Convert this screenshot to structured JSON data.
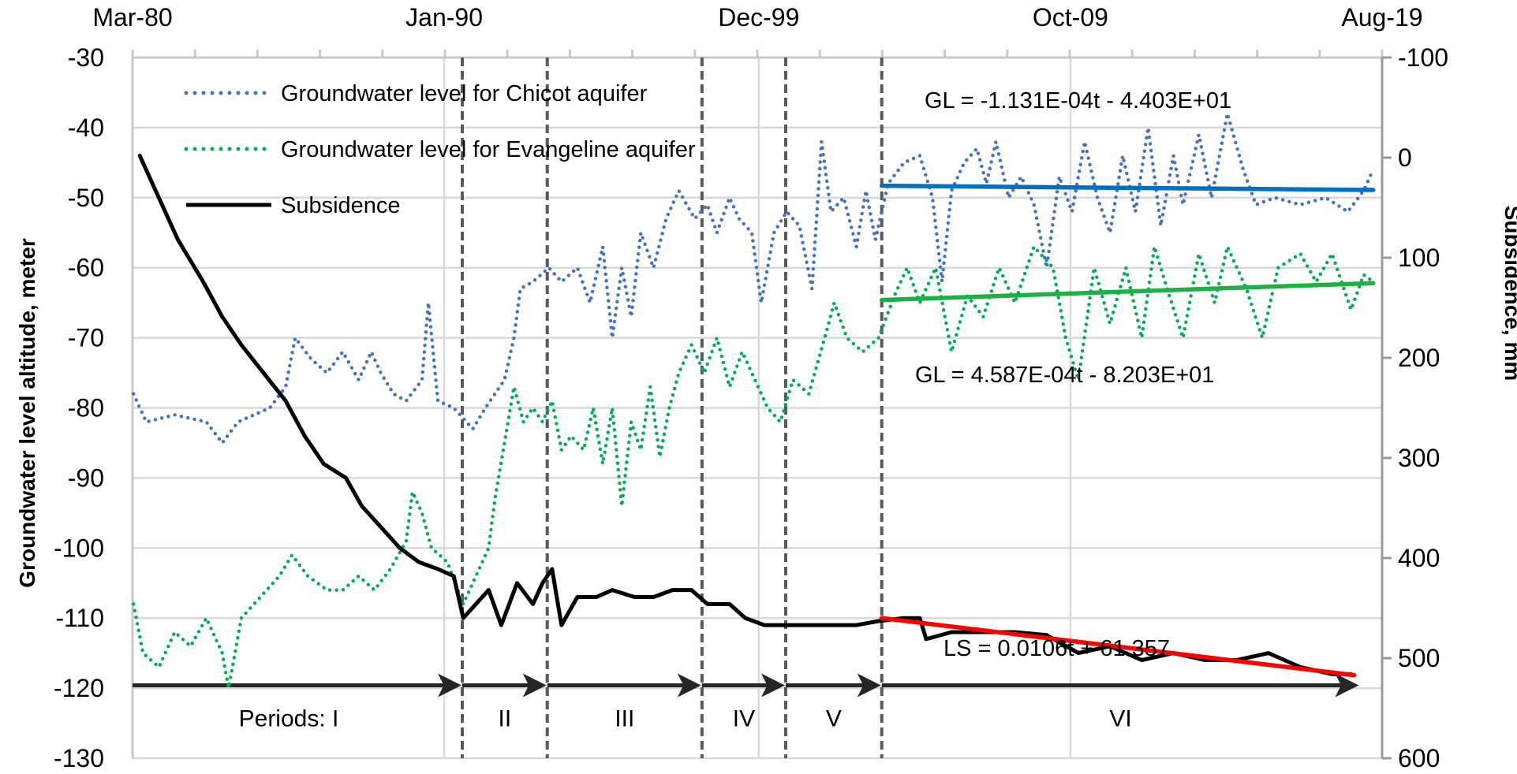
{
  "chart_data": {
    "type": "line",
    "title": "",
    "xlabel": "",
    "ylabel": "Groundwater level altitude, meter",
    "y2label": "Subsidence, mm",
    "xlim": [
      1980.17,
      2019.58
    ],
    "ylim": [
      -130,
      -30
    ],
    "y2lim": [
      600,
      -100
    ],
    "grid": true,
    "legend_position": "top-left",
    "x_tick_labels": [
      {
        "t": 1980.17,
        "label": "Mar-80"
      },
      {
        "t": 1990.0,
        "label": "Jan-90"
      },
      {
        "t": 1999.92,
        "label": "Dec-99"
      },
      {
        "t": 2009.75,
        "label": "Oct-09"
      },
      {
        "t": 2019.58,
        "label": "Aug-19"
      }
    ],
    "y_ticks": [
      -30,
      -40,
      -50,
      -60,
      -70,
      -80,
      -90,
      -100,
      -110,
      -120,
      -130
    ],
    "y_tick_labels": [
      "-30",
      "-40",
      "-50",
      "-60",
      "-70",
      "-80",
      "-90",
      "-100",
      "-110",
      "-120",
      "-130"
    ],
    "y2_ticks": [
      -100,
      0,
      100,
      200,
      300,
      400,
      500,
      600
    ],
    "y2_tick_labels": [
      "-100",
      "0",
      "100",
      "200",
      "300",
      "400",
      "500",
      "600"
    ],
    "series": [
      {
        "name": "Groundwater level for Chicot aquifer",
        "axis": "left",
        "style": "dotted",
        "color": "#4472C4",
        "points": [
          [
            1980.2,
            -78
          ],
          [
            1980.6,
            -82
          ],
          [
            1981.5,
            -81
          ],
          [
            1982.5,
            -82
          ],
          [
            1983.0,
            -85
          ],
          [
            1983.5,
            -82
          ],
          [
            1984.5,
            -80
          ],
          [
            1985.0,
            -77
          ],
          [
            1985.3,
            -70
          ],
          [
            1985.8,
            -73
          ],
          [
            1986.3,
            -75
          ],
          [
            1986.8,
            -72
          ],
          [
            1987.3,
            -76
          ],
          [
            1987.7,
            -72
          ],
          [
            1988.0,
            -75
          ],
          [
            1988.4,
            -78
          ],
          [
            1988.8,
            -79
          ],
          [
            1989.3,
            -76
          ],
          [
            1989.5,
            -65
          ],
          [
            1989.8,
            -79
          ],
          [
            1990.3,
            -80
          ],
          [
            1990.9,
            -83
          ],
          [
            1991.3,
            -80
          ],
          [
            1991.9,
            -76
          ],
          [
            1992.2,
            -70
          ],
          [
            1992.4,
            -63
          ],
          [
            1992.8,
            -62
          ],
          [
            1993.3,
            -60
          ],
          [
            1993.7,
            -62
          ],
          [
            1994.2,
            -60
          ],
          [
            1994.6,
            -65
          ],
          [
            1995.0,
            -57
          ],
          [
            1995.3,
            -70
          ],
          [
            1995.6,
            -60
          ],
          [
            1995.9,
            -67
          ],
          [
            1996.2,
            -55
          ],
          [
            1996.6,
            -60
          ],
          [
            1997.0,
            -53
          ],
          [
            1997.4,
            -49
          ],
          [
            1997.9,
            -53
          ],
          [
            1998.3,
            -51
          ],
          [
            1998.6,
            -55
          ],
          [
            1999.0,
            -50
          ],
          [
            1999.3,
            -53
          ],
          [
            1999.7,
            -55
          ],
          [
            2000.0,
            -65
          ],
          [
            2000.4,
            -55
          ],
          [
            2000.8,
            -52
          ],
          [
            2001.2,
            -54
          ],
          [
            2001.6,
            -63
          ],
          [
            2001.9,
            -42
          ],
          [
            2002.2,
            -52
          ],
          [
            2002.6,
            -50
          ],
          [
            2003.0,
            -57
          ],
          [
            2003.3,
            -49
          ],
          [
            2003.6,
            -56
          ],
          [
            2004.0,
            -48
          ],
          [
            2004.5,
            -45
          ],
          [
            2005.0,
            -44
          ],
          [
            2005.4,
            -50
          ],
          [
            2005.7,
            -62
          ],
          [
            2006.0,
            -49
          ],
          [
            2006.4,
            -45
          ],
          [
            2006.8,
            -43
          ],
          [
            2007.1,
            -48
          ],
          [
            2007.4,
            -42
          ],
          [
            2007.8,
            -50
          ],
          [
            2008.2,
            -47
          ],
          [
            2008.6,
            -51
          ],
          [
            2009.0,
            -60
          ],
          [
            2009.4,
            -47
          ],
          [
            2009.8,
            -52
          ],
          [
            2010.2,
            -42
          ],
          [
            2010.6,
            -50
          ],
          [
            2011.0,
            -55
          ],
          [
            2011.4,
            -44
          ],
          [
            2011.8,
            -52
          ],
          [
            2012.2,
            -40
          ],
          [
            2012.6,
            -54
          ],
          [
            2013.0,
            -44
          ],
          [
            2013.3,
            -51
          ],
          [
            2013.8,
            -41
          ],
          [
            2014.2,
            -50
          ],
          [
            2014.7,
            -38
          ],
          [
            2015.2,
            -46
          ],
          [
            2015.6,
            -51
          ],
          [
            2016.2,
            -50
          ],
          [
            2017.0,
            -51
          ],
          [
            2017.8,
            -50
          ],
          [
            2018.5,
            -52
          ],
          [
            2019.0,
            -49
          ],
          [
            2019.3,
            -46
          ]
        ]
      },
      {
        "name": "Groundwater level for Evangeline aquifer",
        "axis": "left",
        "style": "dotted",
        "color": "#00B050",
        "points": [
          [
            1980.2,
            -108
          ],
          [
            1980.5,
            -115
          ],
          [
            1981.0,
            -117
          ],
          [
            1981.5,
            -112
          ],
          [
            1982.0,
            -114
          ],
          [
            1982.5,
            -110
          ],
          [
            1983.0,
            -115
          ],
          [
            1983.2,
            -120
          ],
          [
            1983.6,
            -110
          ],
          [
            1984.2,
            -107
          ],
          [
            1984.8,
            -104
          ],
          [
            1985.2,
            -101
          ],
          [
            1985.7,
            -104
          ],
          [
            1986.3,
            -106
          ],
          [
            1986.8,
            -106
          ],
          [
            1987.3,
            -104
          ],
          [
            1987.8,
            -106
          ],
          [
            1988.3,
            -103
          ],
          [
            1988.8,
            -99
          ],
          [
            1989.0,
            -92
          ],
          [
            1989.3,
            -95
          ],
          [
            1989.6,
            -100
          ],
          [
            1990.1,
            -102
          ],
          [
            1990.6,
            -108
          ],
          [
            1991.0,
            -104
          ],
          [
            1991.4,
            -100
          ],
          [
            1991.6,
            -93
          ],
          [
            1991.9,
            -85
          ],
          [
            1992.2,
            -77
          ],
          [
            1992.5,
            -82
          ],
          [
            1992.8,
            -80
          ],
          [
            1993.1,
            -82
          ],
          [
            1993.4,
            -79
          ],
          [
            1993.7,
            -86
          ],
          [
            1994.0,
            -84
          ],
          [
            1994.4,
            -86
          ],
          [
            1994.7,
            -80
          ],
          [
            1995.0,
            -88
          ],
          [
            1995.3,
            -80
          ],
          [
            1995.6,
            -94
          ],
          [
            1995.9,
            -82
          ],
          [
            1996.2,
            -86
          ],
          [
            1996.5,
            -77
          ],
          [
            1996.8,
            -87
          ],
          [
            1997.1,
            -80
          ],
          [
            1997.4,
            -75
          ],
          [
            1997.8,
            -71
          ],
          [
            1998.2,
            -75
          ],
          [
            1998.6,
            -70
          ],
          [
            1999.0,
            -77
          ],
          [
            1999.4,
            -72
          ],
          [
            1999.8,
            -76
          ],
          [
            2000.2,
            -80
          ],
          [
            2000.6,
            -82
          ],
          [
            2001.0,
            -76
          ],
          [
            2001.5,
            -78
          ],
          [
            2002.0,
            -70
          ],
          [
            2002.3,
            -65
          ],
          [
            2002.7,
            -70
          ],
          [
            2003.2,
            -72
          ],
          [
            2003.7,
            -70
          ],
          [
            2004.2,
            -64
          ],
          [
            2004.6,
            -60
          ],
          [
            2005.0,
            -65
          ],
          [
            2005.5,
            -60
          ],
          [
            2006.0,
            -72
          ],
          [
            2006.5,
            -64
          ],
          [
            2007.0,
            -67
          ],
          [
            2007.5,
            -60
          ],
          [
            2008.0,
            -65
          ],
          [
            2008.6,
            -57
          ],
          [
            2009.2,
            -60
          ],
          [
            2009.6,
            -70
          ],
          [
            2010.0,
            -76
          ],
          [
            2010.5,
            -60
          ],
          [
            2011.0,
            -68
          ],
          [
            2011.5,
            -60
          ],
          [
            2012.0,
            -70
          ],
          [
            2012.4,
            -57
          ],
          [
            2012.8,
            -63
          ],
          [
            2013.3,
            -70
          ],
          [
            2013.8,
            -58
          ],
          [
            2014.3,
            -65
          ],
          [
            2014.7,
            -57
          ],
          [
            2015.3,
            -63
          ],
          [
            2015.8,
            -70
          ],
          [
            2016.3,
            -60
          ],
          [
            2017.0,
            -58
          ],
          [
            2017.5,
            -62
          ],
          [
            2018.0,
            -58
          ],
          [
            2018.6,
            -66
          ],
          [
            2019.0,
            -61
          ],
          [
            2019.3,
            -62
          ]
        ]
      },
      {
        "name": "Subsidence",
        "axis": "right",
        "style": "solid",
        "color": "#000000",
        "points": [
          [
            1980.4,
            -2
          ],
          [
            1980.9,
            33
          ],
          [
            1981.6,
            82
          ],
          [
            1982.4,
            124
          ],
          [
            1983.0,
            159
          ],
          [
            1983.6,
            187
          ],
          [
            1984.3,
            215
          ],
          [
            1985.0,
            243
          ],
          [
            1985.6,
            278
          ],
          [
            1986.2,
            306
          ],
          [
            1986.9,
            320
          ],
          [
            1987.4,
            348
          ],
          [
            1988.0,
            369
          ],
          [
            1988.6,
            390
          ],
          [
            1989.2,
            404
          ],
          [
            1989.8,
            411
          ],
          [
            1990.3,
            418
          ],
          [
            1990.6,
            460
          ],
          [
            1991.0,
            446
          ],
          [
            1991.4,
            432
          ],
          [
            1991.8,
            467
          ],
          [
            1992.3,
            425
          ],
          [
            1992.8,
            446
          ],
          [
            1993.1,
            425
          ],
          [
            1993.4,
            411
          ],
          [
            1993.7,
            467
          ],
          [
            1994.2,
            439
          ],
          [
            1994.8,
            439
          ],
          [
            1995.3,
            432
          ],
          [
            1996.0,
            439
          ],
          [
            1996.6,
            439
          ],
          [
            1997.2,
            432
          ],
          [
            1997.8,
            432
          ],
          [
            1998.3,
            446
          ],
          [
            1999.0,
            446
          ],
          [
            1999.5,
            460
          ],
          [
            2000.1,
            467
          ],
          [
            2001.0,
            467
          ],
          [
            2002.0,
            467
          ],
          [
            2003.0,
            467
          ],
          [
            2003.7,
            463
          ],
          [
            2004.5,
            460
          ],
          [
            2005.0,
            460
          ],
          [
            2005.2,
            481
          ],
          [
            2006.0,
            474
          ],
          [
            2007.0,
            474
          ],
          [
            2008.0,
            474
          ],
          [
            2009.0,
            477
          ],
          [
            2010.0,
            495
          ],
          [
            2011.0,
            488
          ],
          [
            2012.0,
            502
          ],
          [
            2013.0,
            495
          ],
          [
            2014.0,
            502
          ],
          [
            2015.0,
            502
          ],
          [
            2016.0,
            495
          ],
          [
            2017.0,
            509
          ],
          [
            2018.0,
            516
          ],
          [
            2018.6,
            516
          ]
        ]
      }
    ],
    "trendlines": [
      {
        "name": "Chicot trend",
        "axis": "left",
        "color": "#0070C0",
        "from": [
          2003.8,
          -48.3
        ],
        "to": [
          2019.3,
          -48.9
        ],
        "equation": "GL = -1.131E-04t - 4.403E+01"
      },
      {
        "name": "Evangeline trend",
        "axis": "left",
        "color": "#1DB045",
        "from": [
          2003.8,
          -64.6
        ],
        "to": [
          2019.3,
          -62.2
        ],
        "equation": "GL = 4.587E-04t - 8.203E+01"
      },
      {
        "name": "Subsidence trend",
        "axis": "right",
        "color": "#FF0000",
        "from": [
          2003.8,
          460
        ],
        "to": [
          2018.7,
          517
        ],
        "equation": "LS = 0.0106t + 61.357"
      }
    ],
    "period_boundaries": [
      1990.57,
      1993.25,
      1998.13,
      2000.77,
      2003.8
    ],
    "periods": [
      {
        "label": "Periods: I",
        "start": 1980.17,
        "end": 1990.57
      },
      {
        "label": "II",
        "start": 1990.57,
        "end": 1993.25
      },
      {
        "label": "III",
        "start": 1993.25,
        "end": 1998.13
      },
      {
        "label": "IV",
        "start": 1998.13,
        "end": 2000.77
      },
      {
        "label": "V",
        "start": 2000.77,
        "end": 2003.8
      },
      {
        "label": "VI",
        "start": 2003.8,
        "end": 2018.87
      }
    ],
    "period_arrow_level": -119.6
  }
}
